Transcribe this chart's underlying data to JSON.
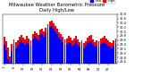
{
  "title": "Milwaukee Weather Barometric Pressure",
  "subtitle": "Daily High/Low",
  "title_fontsize": 3.8,
  "bar_width": 0.45,
  "bar_color_high": "#ff0000",
  "bar_color_low": "#0000ff",
  "background_color": "#ffffff",
  "ylim": [
    28.5,
    30.8
  ],
  "yticks": [
    28.6,
    28.8,
    29.0,
    29.2,
    29.4,
    29.6,
    29.8,
    30.0,
    30.2,
    30.4,
    30.6,
    30.8
  ],
  "legend_high": "High",
  "legend_low": "Low",
  "highs": [
    29.75,
    29.55,
    29.25,
    28.85,
    29.42,
    29.65,
    29.52,
    29.6,
    29.75,
    29.82,
    29.7,
    29.62,
    29.78,
    29.68,
    29.58,
    29.88,
    30.02,
    29.92,
    29.82,
    30.08,
    30.12,
    30.02,
    30.18,
    30.32,
    30.45,
    30.5,
    30.38,
    30.25,
    30.12,
    29.98,
    29.88,
    29.75,
    29.62,
    29.68,
    29.78,
    29.72,
    29.58,
    29.68,
    29.8,
    29.65,
    29.52,
    29.6,
    29.46,
    29.56,
    29.7,
    29.78,
    29.82,
    29.65,
    29.52,
    29.6,
    29.56,
    29.68,
    29.72,
    29.78,
    29.68,
    29.6,
    29.52,
    29.46,
    29.58,
    29.68
  ],
  "lows": [
    29.4,
    29.15,
    28.7,
    28.55,
    29.08,
    29.32,
    29.22,
    29.35,
    29.5,
    29.58,
    29.45,
    29.38,
    29.52,
    29.42,
    29.32,
    29.62,
    29.78,
    29.68,
    29.58,
    29.82,
    29.88,
    29.75,
    29.92,
    30.08,
    30.2,
    30.25,
    30.12,
    30.02,
    29.88,
    29.7,
    29.62,
    29.5,
    29.38,
    29.42,
    29.52,
    29.48,
    29.32,
    29.42,
    29.55,
    29.4,
    29.28,
    29.35,
    29.22,
    29.32,
    29.45,
    29.52,
    29.58,
    29.42,
    29.28,
    29.35,
    29.32,
    29.42,
    29.48,
    29.52,
    29.42,
    29.35,
    29.28,
    29.22,
    29.32,
    29.42
  ]
}
